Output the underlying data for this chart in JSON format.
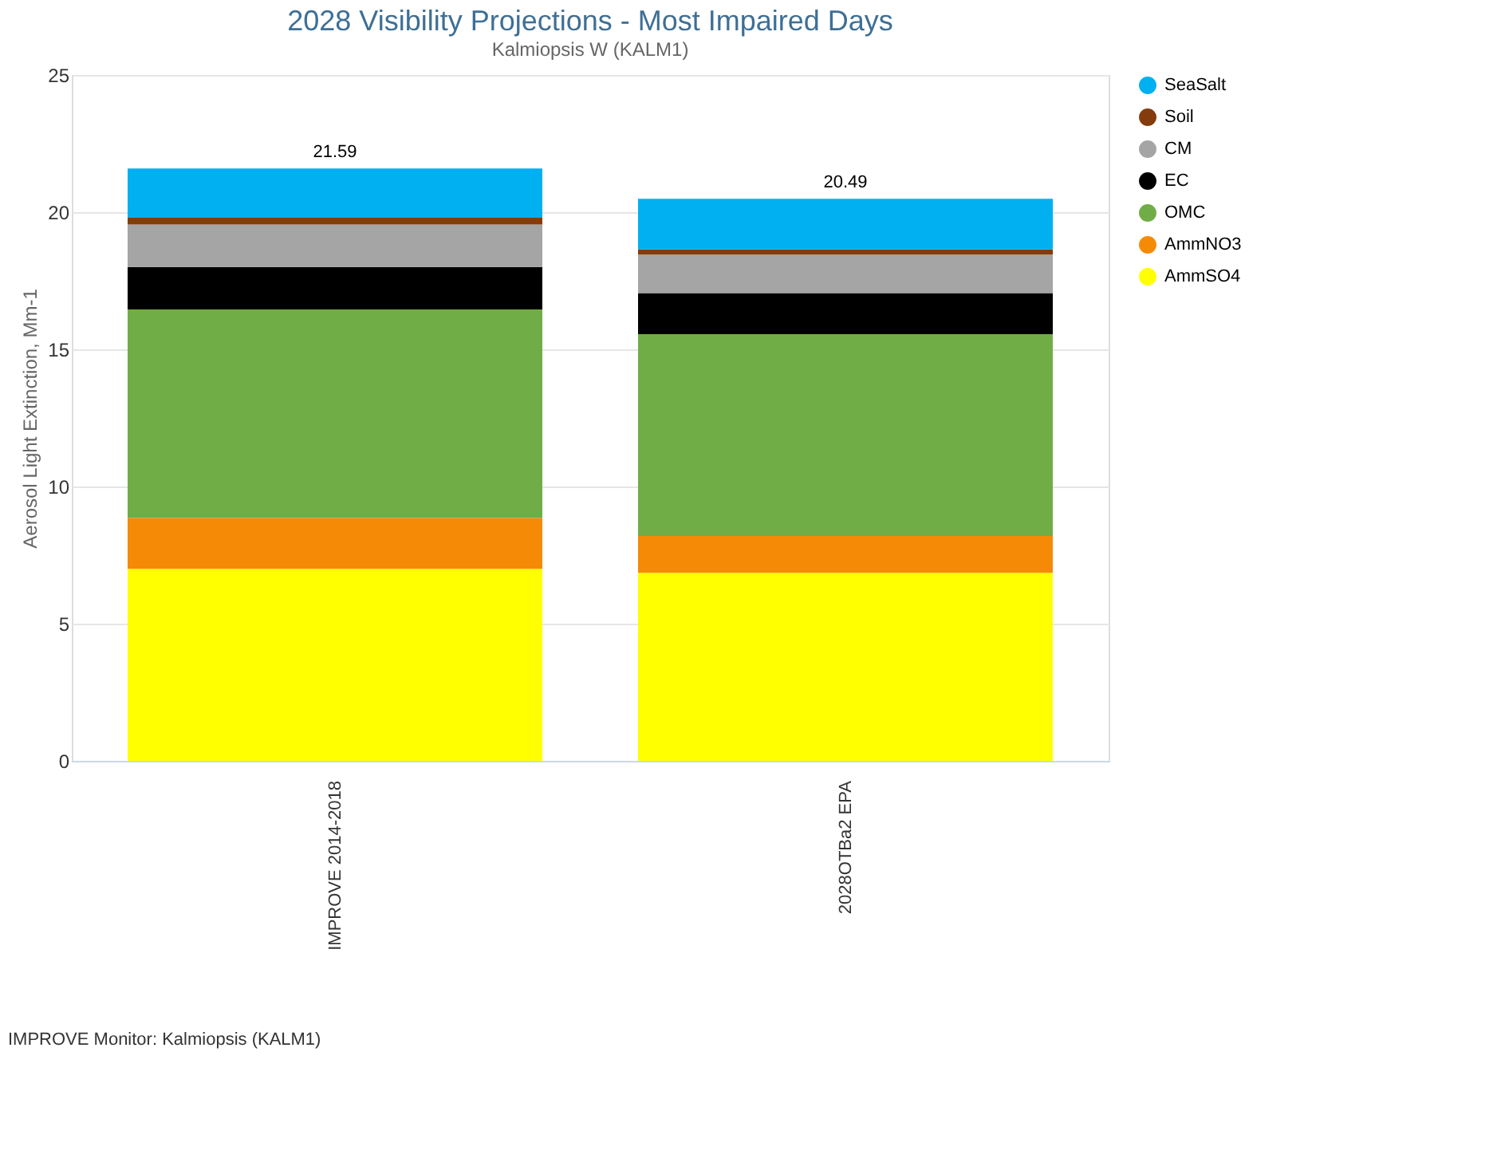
{
  "chart_data": {
    "type": "bar",
    "title": "2028 Visibility Projections - Most Impaired Days",
    "subtitle": "Kalmiopsis W (KALM1)",
    "ylabel": "Aerosol Light Extinction, Mm-1",
    "categories": [
      "IMPROVE 2014-2018",
      "2028OTBa2 EPA"
    ],
    "stacked": true,
    "series": [
      {
        "name": "AmmSO4",
        "color": "#ffff00",
        "values": [
          7.0,
          6.85
        ]
      },
      {
        "name": "AmmNO3",
        "color": "#f58a07",
        "values": [
          1.85,
          1.35
        ]
      },
      {
        "name": "OMC",
        "color": "#70ad47",
        "values": [
          7.6,
          7.35
        ]
      },
      {
        "name": "EC",
        "color": "#000000",
        "values": [
          1.55,
          1.5
        ]
      },
      {
        "name": "CM",
        "color": "#a5a5a5",
        "values": [
          1.55,
          1.4
        ]
      },
      {
        "name": "Soil",
        "color": "#843c0c",
        "values": [
          0.25,
          0.2
        ]
      },
      {
        "name": "SeaSalt",
        "color": "#00b0f0",
        "values": [
          1.79,
          1.84
        ]
      }
    ],
    "totals": [
      "21.59",
      "20.49"
    ],
    "ylim": [
      0,
      25
    ],
    "yticks": [
      0,
      5,
      10,
      15,
      20,
      25
    ],
    "grid": "y",
    "legend": "right",
    "annotations": [
      "IMPROVE Monitor: Kalmiopsis (KALM1)"
    ]
  }
}
